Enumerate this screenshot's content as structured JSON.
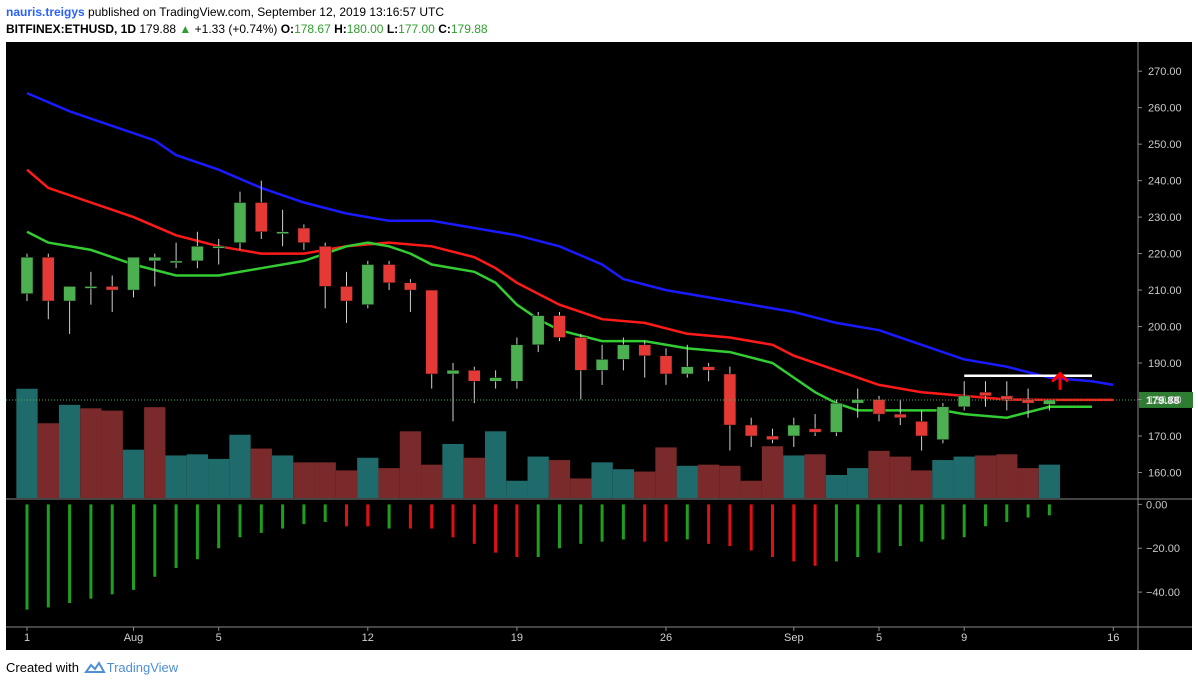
{
  "header": {
    "author": "nauris.treigys",
    "published": "published on TradingView.com, September 12, 2019 13:16:57 UTC",
    "symbol": "BITFINEX:ETHUSD, 1D",
    "last": "179.88",
    "arrow": "▲",
    "change": "+1.33 (+0.74%)",
    "o_label": "O:",
    "o_value": "178.67",
    "h_label": "H:",
    "h_value": "180.00",
    "l_label": "L:",
    "l_value": "177.00",
    "c_label": "C:",
    "c_value": "179.88"
  },
  "footer": {
    "created_with": "Created with",
    "brand": "TradingView"
  },
  "colors": {
    "background": "#000000",
    "bull": "#4caf50",
    "bear": "#e53935",
    "ma_slow": "#1a1aff",
    "ma_mid": "#ff1a1a",
    "ma_fast": "#33cc33",
    "vol_bull": "#1f6b6b",
    "vol_bear": "#7a2a2a",
    "price_label_bg": "#2e7d32",
    "resistance": "#ffffff",
    "arrow": "#ff0000"
  },
  "icons": {
    "brand_logo": "tradingview-cloud-icon",
    "arrow": "red-up-arrow-icon"
  },
  "chart_data": {
    "type": "candlestick",
    "price_axis": {
      "ylim": [
        153,
        278
      ],
      "ticks": [
        "270.00",
        "260.00",
        "250.00",
        "240.00",
        "230.00",
        "220.00",
        "210.00",
        "200.00",
        "190.00",
        "180.00",
        "170.00",
        "160.00"
      ]
    },
    "oscillator_axis": {
      "ylim": [
        -55,
        2
      ],
      "ticks": [
        "0.00",
        "−20.00",
        "−40.00"
      ]
    },
    "x_ticks": [
      {
        "day": 0,
        "label": "1"
      },
      {
        "day": 5,
        "label": "Aug"
      },
      {
        "day": 9,
        "label": "5"
      },
      {
        "day": 16,
        "label": "12"
      },
      {
        "day": 23,
        "label": "19"
      },
      {
        "day": 30,
        "label": "26"
      },
      {
        "day": 36,
        "label": "Sep"
      },
      {
        "day": 40,
        "label": "5"
      },
      {
        "day": 44,
        "label": "9"
      },
      {
        "day": 51,
        "label": "16"
      }
    ],
    "last_price": "179.88",
    "candles": [
      {
        "o": 209,
        "h": 220,
        "l": 207,
        "c": 219
      },
      {
        "o": 219,
        "h": 220,
        "l": 202,
        "c": 207
      },
      {
        "o": 207,
        "h": 211,
        "l": 198,
        "c": 211
      },
      {
        "o": 211,
        "h": 215,
        "l": 206,
        "c": 211
      },
      {
        "o": 211,
        "h": 214,
        "l": 204,
        "c": 210
      },
      {
        "o": 210,
        "h": 219,
        "l": 208,
        "c": 219
      },
      {
        "o": 218,
        "h": 220,
        "l": 211,
        "c": 219
      },
      {
        "o": 218,
        "h": 223,
        "l": 216,
        "c": 218
      },
      {
        "o": 218,
        "h": 226,
        "l": 216,
        "c": 222
      },
      {
        "o": 222,
        "h": 224,
        "l": 217,
        "c": 222
      },
      {
        "o": 223,
        "h": 237,
        "l": 221,
        "c": 234
      },
      {
        "o": 234,
        "h": 240,
        "l": 224,
        "c": 226
      },
      {
        "o": 226,
        "h": 232,
        "l": 222,
        "c": 226
      },
      {
        "o": 227,
        "h": 228,
        "l": 221,
        "c": 223
      },
      {
        "o": 222,
        "h": 223,
        "l": 205,
        "c": 211
      },
      {
        "o": 211,
        "h": 215,
        "l": 201,
        "c": 207
      },
      {
        "o": 206,
        "h": 218,
        "l": 205,
        "c": 217
      },
      {
        "o": 217,
        "h": 218,
        "l": 210,
        "c": 212
      },
      {
        "o": 212,
        "h": 213,
        "l": 204,
        "c": 210
      },
      {
        "o": 210,
        "h": 210,
        "l": 183,
        "c": 187
      },
      {
        "o": 187,
        "h": 190,
        "l": 174,
        "c": 188
      },
      {
        "o": 188,
        "h": 189,
        "l": 179,
        "c": 185
      },
      {
        "o": 185,
        "h": 188,
        "l": 183,
        "c": 186
      },
      {
        "o": 185,
        "h": 197,
        "l": 183,
        "c": 195
      },
      {
        "o": 195,
        "h": 204,
        "l": 193,
        "c": 203
      },
      {
        "o": 203,
        "h": 204,
        "l": 196,
        "c": 197
      },
      {
        "o": 197,
        "h": 198,
        "l": 180,
        "c": 188
      },
      {
        "o": 188,
        "h": 195,
        "l": 184,
        "c": 191
      },
      {
        "o": 191,
        "h": 197,
        "l": 188,
        "c": 195
      },
      {
        "o": 195,
        "h": 196,
        "l": 186,
        "c": 192
      },
      {
        "o": 192,
        "h": 194,
        "l": 184,
        "c": 187
      },
      {
        "o": 187,
        "h": 195,
        "l": 186,
        "c": 189
      },
      {
        "o": 189,
        "h": 190,
        "l": 185,
        "c": 188
      },
      {
        "o": 187,
        "h": 189,
        "l": 166,
        "c": 173
      },
      {
        "o": 173,
        "h": 175,
        "l": 167,
        "c": 170
      },
      {
        "o": 170,
        "h": 172,
        "l": 168,
        "c": 169
      },
      {
        "o": 170,
        "h": 175,
        "l": 167,
        "c": 173
      },
      {
        "o": 172,
        "h": 176,
        "l": 170,
        "c": 171
      },
      {
        "o": 171,
        "h": 180,
        "l": 170,
        "c": 179
      },
      {
        "o": 179,
        "h": 183,
        "l": 175,
        "c": 180
      },
      {
        "o": 180,
        "h": 181,
        "l": 174,
        "c": 176
      },
      {
        "o": 176,
        "h": 180,
        "l": 173,
        "c": 175
      },
      {
        "o": 174,
        "h": 177,
        "l": 166,
        "c": 170
      },
      {
        "o": 169,
        "h": 179,
        "l": 168,
        "c": 178
      },
      {
        "o": 178,
        "h": 185,
        "l": 177,
        "c": 181
      },
      {
        "o": 182,
        "h": 185,
        "l": 178,
        "c": 181
      },
      {
        "o": 181,
        "h": 185,
        "l": 177,
        "c": 180
      },
      {
        "o": 180,
        "h": 183,
        "l": 175,
        "c": 179
      },
      {
        "o": 178.67,
        "h": 180,
        "l": 177,
        "c": 179.88
      }
    ],
    "volume": [
      0.95,
      0.65,
      0.81,
      0.78,
      0.76,
      0.42,
      0.79,
      0.37,
      0.38,
      0.34,
      0.55,
      0.43,
      0.37,
      0.31,
      0.31,
      0.24,
      0.35,
      0.26,
      0.58,
      0.29,
      0.47,
      0.35,
      0.58,
      0.15,
      0.36,
      0.33,
      0.17,
      0.31,
      0.25,
      0.23,
      0.44,
      0.28,
      0.29,
      0.28,
      0.15,
      0.45,
      0.37,
      0.38,
      0.2,
      0.26,
      0.41,
      0.36,
      0.24,
      0.33,
      0.36,
      0.37,
      0.38,
      0.26,
      0.29
    ],
    "volume_bull": [
      true,
      false,
      true,
      false,
      false,
      true,
      false,
      true,
      true,
      true,
      true,
      false,
      true,
      false,
      false,
      false,
      true,
      false,
      false,
      false,
      true,
      false,
      true,
      true,
      true,
      false,
      false,
      true,
      true,
      false,
      false,
      true,
      false,
      false,
      false,
      false,
      true,
      false,
      true,
      true,
      false,
      false,
      false,
      true,
      true,
      false,
      false,
      false,
      true
    ],
    "ma_slow": [
      [
        0,
        264
      ],
      [
        2,
        259
      ],
      [
        4,
        255
      ],
      [
        6,
        251
      ],
      [
        7,
        247
      ],
      [
        9,
        243
      ],
      [
        11,
        238
      ],
      [
        13,
        234
      ],
      [
        15,
        231
      ],
      [
        17,
        229
      ],
      [
        19,
        229
      ],
      [
        21,
        227
      ],
      [
        23,
        225
      ],
      [
        25,
        222
      ],
      [
        27,
        217
      ],
      [
        28,
        213
      ],
      [
        30,
        210
      ],
      [
        32,
        208
      ],
      [
        34,
        206
      ],
      [
        36,
        204
      ],
      [
        38,
        201
      ],
      [
        40,
        199
      ],
      [
        42,
        195
      ],
      [
        44,
        191
      ],
      [
        46,
        189
      ],
      [
        48,
        186
      ],
      [
        50,
        185
      ],
      [
        51,
        184
      ]
    ],
    "ma_mid": [
      [
        0,
        243
      ],
      [
        1,
        238
      ],
      [
        3,
        234
      ],
      [
        5,
        230
      ],
      [
        7,
        225
      ],
      [
        9,
        222
      ],
      [
        11,
        220
      ],
      [
        13,
        220
      ],
      [
        15,
        222
      ],
      [
        17,
        223
      ],
      [
        19,
        222
      ],
      [
        21,
        219
      ],
      [
        22,
        216
      ],
      [
        23,
        212
      ],
      [
        25,
        206
      ],
      [
        27,
        202
      ],
      [
        29,
        201
      ],
      [
        31,
        198
      ],
      [
        33,
        197
      ],
      [
        35,
        195
      ],
      [
        36,
        192
      ],
      [
        38,
        188
      ],
      [
        40,
        184
      ],
      [
        42,
        182
      ],
      [
        44,
        181
      ],
      [
        46,
        180
      ],
      [
        48,
        179.88
      ],
      [
        51,
        179.88
      ]
    ],
    "ma_fast": [
      [
        0,
        226
      ],
      [
        1,
        223
      ],
      [
        3,
        221
      ],
      [
        5,
        217
      ],
      [
        7,
        214
      ],
      [
        9,
        214
      ],
      [
        11,
        216
      ],
      [
        13,
        218
      ],
      [
        15,
        222
      ],
      [
        16,
        223
      ],
      [
        17,
        222
      ],
      [
        18,
        220
      ],
      [
        19,
        217
      ],
      [
        21,
        215
      ],
      [
        22,
        212
      ],
      [
        23,
        206
      ],
      [
        24,
        202
      ],
      [
        25,
        199
      ],
      [
        27,
        196
      ],
      [
        29,
        196
      ],
      [
        31,
        194
      ],
      [
        33,
        193
      ],
      [
        35,
        190
      ],
      [
        36,
        186
      ],
      [
        37,
        182
      ],
      [
        38,
        179
      ],
      [
        39,
        177
      ],
      [
        41,
        177
      ],
      [
        43,
        177
      ],
      [
        44,
        176
      ],
      [
        46,
        175
      ],
      [
        48,
        178
      ],
      [
        50,
        178
      ]
    ],
    "oscillator": [
      {
        "v": -48,
        "bull": true
      },
      {
        "v": -47,
        "bull": true
      },
      {
        "v": -45,
        "bull": true
      },
      {
        "v": -43,
        "bull": true
      },
      {
        "v": -41,
        "bull": true
      },
      {
        "v": -39,
        "bull": true
      },
      {
        "v": -33,
        "bull": true
      },
      {
        "v": -29,
        "bull": true
      },
      {
        "v": -25,
        "bull": true
      },
      {
        "v": -20,
        "bull": true
      },
      {
        "v": -15,
        "bull": true
      },
      {
        "v": -13,
        "bull": true
      },
      {
        "v": -11,
        "bull": true
      },
      {
        "v": -9,
        "bull": true
      },
      {
        "v": -8,
        "bull": true
      },
      {
        "v": -10,
        "bull": false
      },
      {
        "v": -10,
        "bull": false
      },
      {
        "v": -11,
        "bull": true
      },
      {
        "v": -11,
        "bull": false
      },
      {
        "v": -11,
        "bull": false
      },
      {
        "v": -15,
        "bull": false
      },
      {
        "v": -18,
        "bull": false
      },
      {
        "v": -22,
        "bull": false
      },
      {
        "v": -24,
        "bull": false
      },
      {
        "v": -24,
        "bull": true
      },
      {
        "v": -20,
        "bull": true
      },
      {
        "v": -18,
        "bull": true
      },
      {
        "v": -17,
        "bull": true
      },
      {
        "v": -16,
        "bull": true
      },
      {
        "v": -17,
        "bull": false
      },
      {
        "v": -17,
        "bull": false
      },
      {
        "v": -16,
        "bull": true
      },
      {
        "v": -18,
        "bull": false
      },
      {
        "v": -19,
        "bull": false
      },
      {
        "v": -21,
        "bull": false
      },
      {
        "v": -24,
        "bull": false
      },
      {
        "v": -26,
        "bull": false
      },
      {
        "v": -28,
        "bull": false
      },
      {
        "v": -26,
        "bull": true
      },
      {
        "v": -24,
        "bull": true
      },
      {
        "v": -22,
        "bull": true
      },
      {
        "v": -19,
        "bull": true
      },
      {
        "v": -17,
        "bull": true
      },
      {
        "v": -16,
        "bull": true
      },
      {
        "v": -15,
        "bull": true
      },
      {
        "v": -10,
        "bull": true
      },
      {
        "v": -8,
        "bull": true
      },
      {
        "v": -6,
        "bull": true
      },
      {
        "v": -5,
        "bull": true
      }
    ],
    "resistance": {
      "y": 186.5,
      "x_start": 44,
      "x_end": 50
    },
    "arrow": {
      "day": 48.5,
      "price": 183
    }
  }
}
